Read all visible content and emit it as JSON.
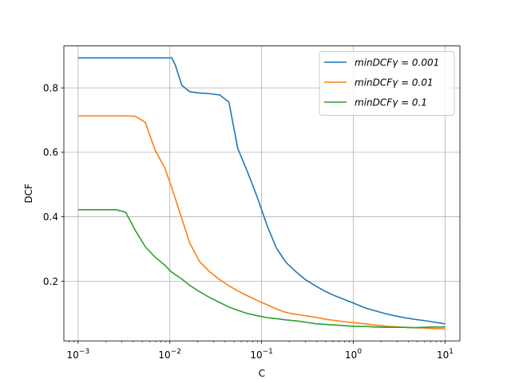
{
  "chart_data": {
    "type": "line",
    "title": "",
    "xlabel": "C",
    "ylabel": "DCF",
    "xscale": "log",
    "xlim": [
      0.0007,
      14.5
    ],
    "ylim": [
      0.015,
      0.93
    ],
    "grid": true,
    "legend_position": "upper right",
    "x_ticks": [
      {
        "value": 0.001,
        "label_base": "10",
        "label_exp": "−3"
      },
      {
        "value": 0.01,
        "label_base": "10",
        "label_exp": "−2"
      },
      {
        "value": 0.1,
        "label_base": "10",
        "label_exp": "−1"
      },
      {
        "value": 1,
        "label_base": "10",
        "label_exp": "0"
      },
      {
        "value": 10,
        "label_base": "10",
        "label_exp": "1"
      }
    ],
    "y_ticks": [
      {
        "value": 0.2,
        "label": "0.2"
      },
      {
        "value": 0.4,
        "label": "0.4"
      },
      {
        "value": 0.6,
        "label": "0.6"
      },
      {
        "value": 0.8,
        "label": "0.8"
      }
    ],
    "series": [
      {
        "name": "minDCFγ = 0.001",
        "color": "#1f77b4",
        "x": [
          0.001,
          0.0013,
          0.0016,
          0.002,
          0.0026,
          0.0033,
          0.0042,
          0.0054,
          0.0069,
          0.0088,
          0.0105,
          0.0115,
          0.0135,
          0.0165,
          0.021,
          0.027,
          0.035,
          0.044,
          0.055,
          0.07,
          0.09,
          0.115,
          0.145,
          0.185,
          0.24,
          0.3,
          0.39,
          0.5,
          0.64,
          0.82,
          1.05,
          1.35,
          1.7,
          2.2,
          2.8,
          3.6,
          4.6,
          5.9,
          7.6,
          10
        ],
        "values": [
          0.893,
          0.893,
          0.893,
          0.893,
          0.893,
          0.893,
          0.893,
          0.893,
          0.893,
          0.893,
          0.893,
          0.87,
          0.808,
          0.788,
          0.784,
          0.782,
          0.778,
          0.756,
          0.612,
          0.54,
          0.46,
          0.372,
          0.303,
          0.258,
          0.228,
          0.205,
          0.185,
          0.168,
          0.154,
          0.142,
          0.13,
          0.117,
          0.109,
          0.1,
          0.093,
          0.087,
          0.082,
          0.078,
          0.073,
          0.068
        ]
      },
      {
        "name": "minDCFγ = 0.01",
        "color": "#ff7f0e",
        "x": [
          0.001,
          0.0013,
          0.0016,
          0.002,
          0.0026,
          0.0033,
          0.0042,
          0.0054,
          0.0069,
          0.0088,
          0.0105,
          0.0135,
          0.0165,
          0.021,
          0.027,
          0.035,
          0.044,
          0.055,
          0.07,
          0.09,
          0.115,
          0.145,
          0.185,
          0.24,
          0.3,
          0.39,
          0.5,
          0.64,
          0.82,
          1.05,
          1.35,
          1.7,
          2.2,
          2.8,
          3.6,
          4.6,
          5.9,
          7.6,
          10
        ],
        "values": [
          0.713,
          0.713,
          0.713,
          0.713,
          0.713,
          0.713,
          0.712,
          0.693,
          0.607,
          0.552,
          0.49,
          0.395,
          0.318,
          0.262,
          0.23,
          0.205,
          0.186,
          0.17,
          0.155,
          0.14,
          0.127,
          0.114,
          0.103,
          0.097,
          0.093,
          0.088,
          0.082,
          0.078,
          0.074,
          0.071,
          0.068,
          0.064,
          0.061,
          0.059,
          0.057,
          0.056,
          0.055,
          0.053,
          0.052
        ]
      },
      {
        "name": "minDCFγ = 0.1",
        "color": "#2ca02c",
        "x": [
          0.001,
          0.0013,
          0.0016,
          0.002,
          0.0026,
          0.0033,
          0.0042,
          0.0054,
          0.0069,
          0.0088,
          0.0105,
          0.0135,
          0.0165,
          0.021,
          0.027,
          0.035,
          0.044,
          0.055,
          0.07,
          0.09,
          0.115,
          0.145,
          0.185,
          0.24,
          0.3,
          0.39,
          0.5,
          0.64,
          0.82,
          1.05,
          1.35,
          1.7,
          2.2,
          2.8,
          3.6,
          4.6,
          5.9,
          7.6,
          10
        ],
        "values": [
          0.422,
          0.422,
          0.422,
          0.422,
          0.422,
          0.414,
          0.358,
          0.307,
          0.275,
          0.25,
          0.228,
          0.207,
          0.187,
          0.168,
          0.15,
          0.134,
          0.12,
          0.11,
          0.1,
          0.093,
          0.087,
          0.084,
          0.08,
          0.077,
          0.073,
          0.068,
          0.066,
          0.064,
          0.062,
          0.06,
          0.06,
          0.058,
          0.057,
          0.057,
          0.057,
          0.056,
          0.057,
          0.058,
          0.058
        ]
      }
    ]
  }
}
